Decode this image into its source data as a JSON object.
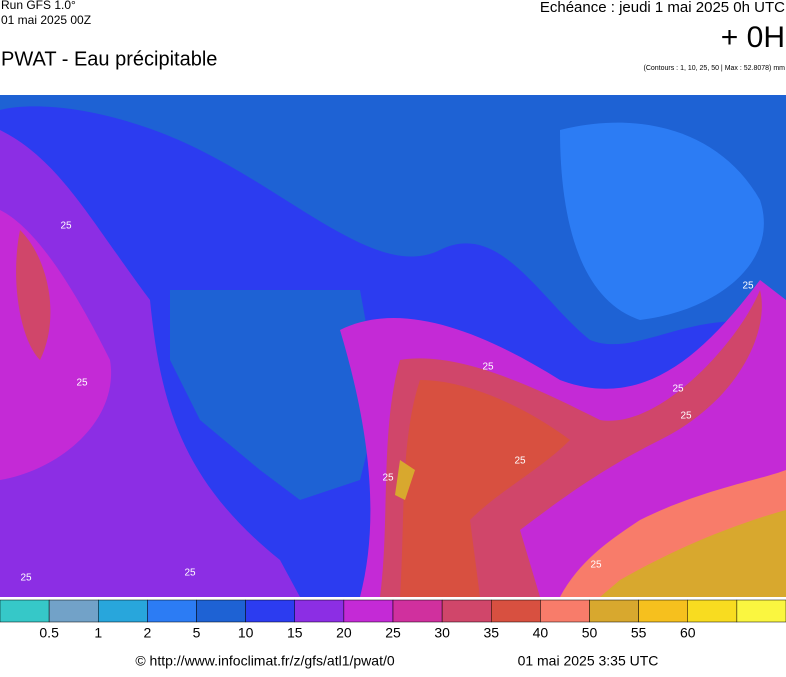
{
  "header": {
    "run": "Run GFS 1.0°",
    "date": "01 mai 2025 00Z",
    "echeance": "Echéance : jeudi 1 mai 2025 0h UTC",
    "offset": "+ 0H",
    "title": "PWAT - Eau précipitable",
    "contours": "(Contours : 1, 10, 25, 50 | Max : 52.8078) mm"
  },
  "map": {
    "contour_labels": [
      "25",
      "25",
      "25",
      "25",
      "25",
      "25",
      "25",
      "25",
      "25",
      "25",
      "25"
    ]
  },
  "colorbar": {
    "colors": [
      "#36c8c8",
      "#72a2c8",
      "#28a6dc",
      "#2c7cf4",
      "#1e62d4",
      "#2c3cf0",
      "#8c2ee4",
      "#c42ad6",
      "#d0309e",
      "#d0466a",
      "#d85040",
      "#f87c6a",
      "#d8a82e",
      "#f6c01e",
      "#f8dc20",
      "#faf640"
    ],
    "ticks": [
      0.5,
      1,
      2,
      5,
      10,
      15,
      20,
      25,
      30,
      35,
      40,
      50,
      55,
      60
    ]
  },
  "footer": {
    "url": "© http://www.infoclimat.fr/z/gfs/atl1/pwat/0",
    "time": "01 mai 2025  3:35 UTC"
  }
}
